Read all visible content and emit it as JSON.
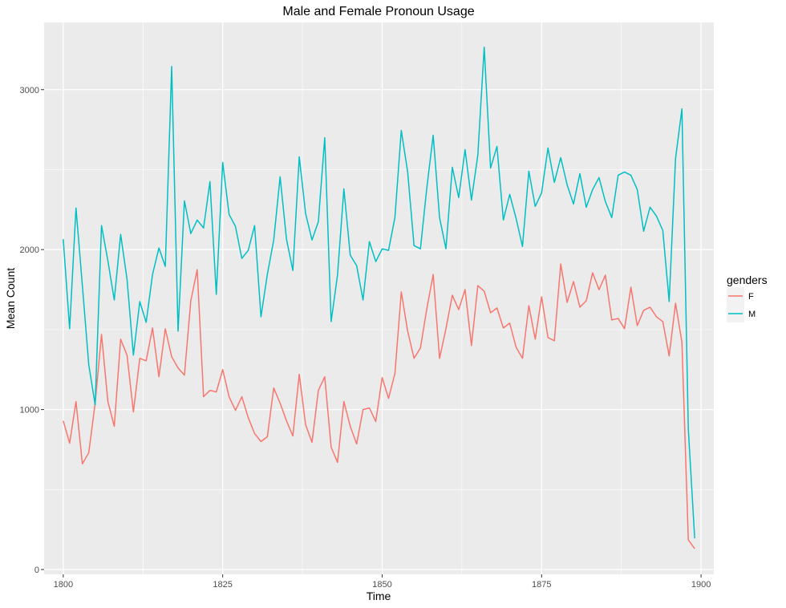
{
  "chart_data": {
    "type": "line",
    "title": "Male and Female Pronoun Usage",
    "xlabel": "Time",
    "ylabel": "Mean Count",
    "xlim": [
      1797,
      1902
    ],
    "ylim": [
      -30,
      3420
    ],
    "x_ticks": [
      1800,
      1825,
      1850,
      1875,
      1900
    ],
    "y_ticks": [
      0,
      1000,
      2000,
      3000
    ],
    "grid": true,
    "legend": {
      "title": "genders",
      "position": "right"
    },
    "x": [
      1800,
      1801,
      1802,
      1803,
      1804,
      1805,
      1806,
      1807,
      1808,
      1809,
      1810,
      1811,
      1812,
      1813,
      1814,
      1815,
      1816,
      1817,
      1818,
      1819,
      1820,
      1821,
      1822,
      1823,
      1824,
      1825,
      1826,
      1827,
      1828,
      1829,
      1830,
      1831,
      1832,
      1833,
      1834,
      1835,
      1836,
      1837,
      1838,
      1839,
      1840,
      1841,
      1842,
      1843,
      1844,
      1845,
      1846,
      1847,
      1848,
      1849,
      1850,
      1851,
      1852,
      1853,
      1854,
      1855,
      1856,
      1857,
      1858,
      1859,
      1860,
      1861,
      1862,
      1863,
      1864,
      1865,
      1866,
      1867,
      1868,
      1869,
      1870,
      1871,
      1872,
      1873,
      1874,
      1875,
      1876,
      1877,
      1878,
      1879,
      1880,
      1881,
      1882,
      1883,
      1884,
      1885,
      1886,
      1887,
      1888,
      1889,
      1890,
      1891,
      1892,
      1893,
      1894,
      1895,
      1896,
      1897,
      1898,
      1899
    ],
    "series": [
      {
        "name": "F",
        "color": "#F8766D",
        "values": [
          930,
          790,
          1050,
          660,
          730,
          1040,
          1470,
          1050,
          895,
          1440,
          1340,
          985,
          1320,
          1305,
          1510,
          1205,
          1505,
          1330,
          1260,
          1215,
          1680,
          1875,
          1080,
          1120,
          1110,
          1250,
          1080,
          995,
          1080,
          950,
          850,
          800,
          830,
          1135,
          1040,
          930,
          835,
          1220,
          905,
          795,
          1120,
          1205,
          765,
          670,
          1050,
          895,
          785,
          1000,
          1010,
          925,
          1200,
          1070,
          1225,
          1735,
          1490,
          1320,
          1385,
          1630,
          1845,
          1320,
          1505,
          1715,
          1625,
          1750,
          1400,
          1775,
          1740,
          1605,
          1635,
          1510,
          1540,
          1390,
          1320,
          1650,
          1440,
          1705,
          1450,
          1430,
          1910,
          1670,
          1800,
          1640,
          1680,
          1855,
          1750,
          1840,
          1560,
          1570,
          1505,
          1765,
          1525,
          1620,
          1640,
          1580,
          1550,
          1335,
          1665,
          1420,
          185,
          130
        ]
      },
      {
        "name": "M",
        "color": "#00BFC4",
        "values": [
          2065,
          1505,
          2260,
          1775,
          1280,
          1030,
          2150,
          1930,
          1685,
          2095,
          1815,
          1340,
          1675,
          1545,
          1845,
          2010,
          1895,
          3145,
          1490,
          2305,
          2100,
          2185,
          2135,
          2425,
          1720,
          2545,
          2220,
          2145,
          1945,
          1995,
          2150,
          1580,
          1845,
          2060,
          2455,
          2065,
          1870,
          2580,
          2225,
          2060,
          2175,
          2700,
          1550,
          1840,
          2380,
          1965,
          1900,
          1685,
          2050,
          1925,
          2005,
          1995,
          2200,
          2745,
          2485,
          2025,
          2005,
          2385,
          2715,
          2200,
          2005,
          2515,
          2325,
          2625,
          2310,
          2590,
          3265,
          2510,
          2645,
          2185,
          2345,
          2195,
          2020,
          2490,
          2270,
          2355,
          2635,
          2420,
          2575,
          2405,
          2285,
          2475,
          2265,
          2375,
          2450,
          2300,
          2200,
          2465,
          2485,
          2465,
          2375,
          2115,
          2265,
          2210,
          2120,
          1675,
          2570,
          2880,
          880,
          195
        ]
      }
    ]
  }
}
